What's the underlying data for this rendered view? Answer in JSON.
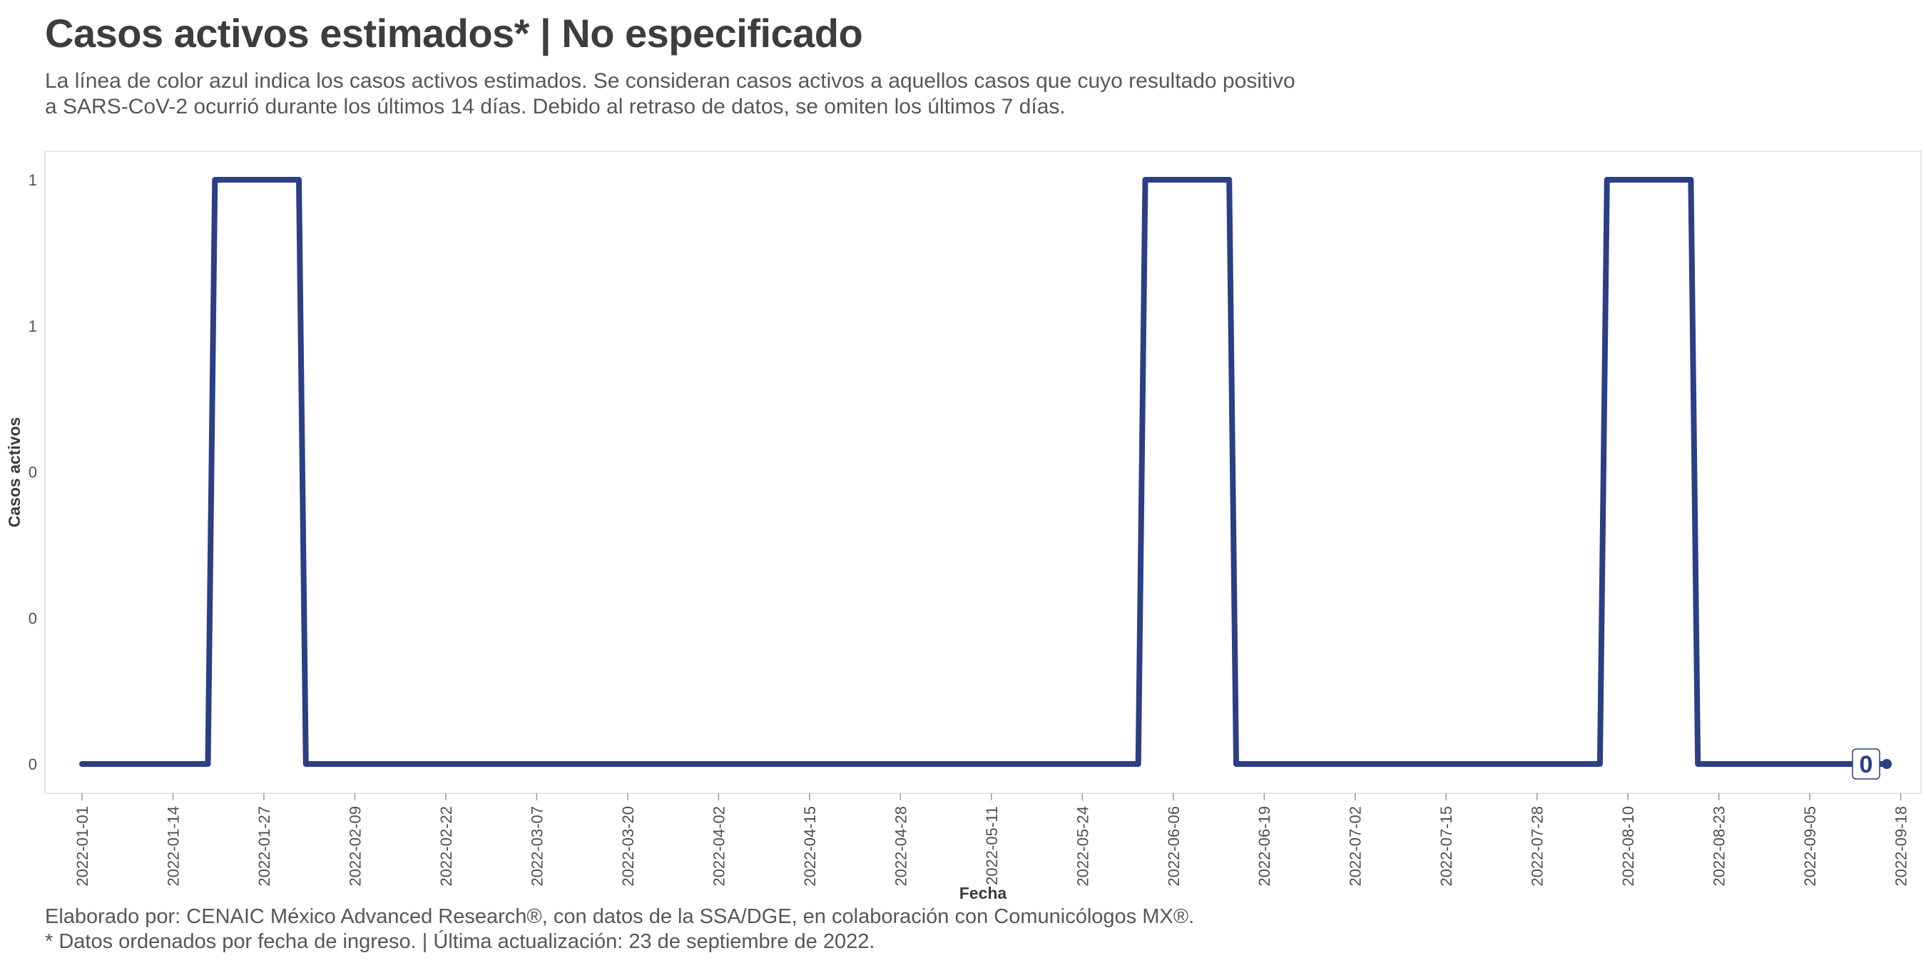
{
  "title": "Casos activos estimados* | No especificado",
  "subtitle": {
    "line1": "La línea de color azul indica los casos activos estimados. Se consideran casos activos a aquellos casos que cuyo resultado positivo",
    "line2": "a SARS-CoV-2 ocurrió durante los últimos 14 días. Debido al retraso de datos, se omiten los últimos 7 días."
  },
  "caption": {
    "line1": "Elaborado por: CENAIC México Advanced Research®, con datos de la SSA/DGE, en colaboración con Comunicólogos MX®.",
    "line2": "* Datos ordenados por fecha de ingreso. | Última actualización: 23 de septiembre de 2022."
  },
  "colors": {
    "line": "#2a3f85",
    "panel_border": "#e6e6e6"
  },
  "chart_data": {
    "type": "line",
    "xlabel": "Fecha",
    "ylabel": "Casos activos",
    "x_range": [
      "2022-01-01",
      "2022-09-16"
    ],
    "ylim": [
      0,
      1
    ],
    "y_ticks": [
      {
        "value": 0,
        "label": "0"
      },
      {
        "value": 0.25,
        "label": "0"
      },
      {
        "value": 0.5,
        "label": "0"
      },
      {
        "value": 0.75,
        "label": "1"
      },
      {
        "value": 1,
        "label": "1"
      }
    ],
    "x_ticks": [
      "2022-01-01",
      "2022-01-14",
      "2022-01-27",
      "2022-02-09",
      "2022-02-22",
      "2022-03-07",
      "2022-03-20",
      "2022-04-02",
      "2022-04-15",
      "2022-04-28",
      "2022-05-11",
      "2022-05-24",
      "2022-06-06",
      "2022-06-19",
      "2022-07-02",
      "2022-07-15",
      "2022-07-28",
      "2022-08-10",
      "2022-08-23",
      "2022-09-05",
      "2022-09-18"
    ],
    "grid": false,
    "series": [
      {
        "x": [
          "2022-01-01",
          "2022-01-19",
          "2022-01-20",
          "2022-02-01",
          "2022-02-02",
          "2022-06-01",
          "2022-06-02",
          "2022-06-14",
          "2022-06-15",
          "2022-08-06",
          "2022-08-07",
          "2022-08-19",
          "2022-08-20",
          "2022-09-16"
        ],
        "y": [
          0,
          0,
          1,
          1,
          0,
          0,
          1,
          1,
          0,
          0,
          1,
          1,
          0,
          0
        ]
      }
    ],
    "end_label": "0"
  }
}
